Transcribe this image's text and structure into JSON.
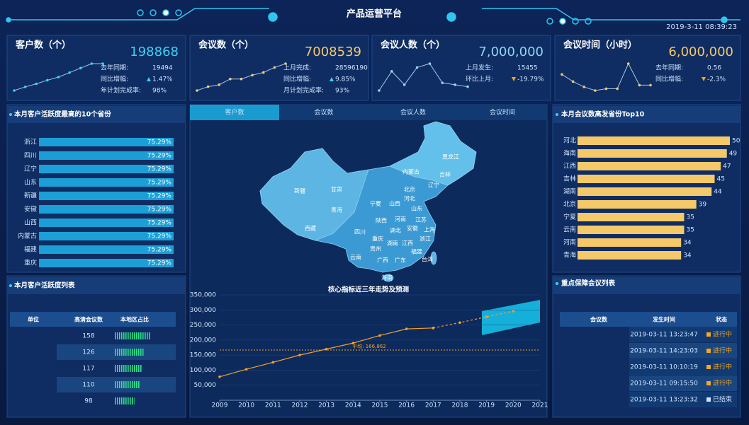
{
  "header": {
    "title": "产品运营平台",
    "datetime": "2019-3-11 08:39:23"
  },
  "kpis": [
    {
      "title": "客户数（个）",
      "value": "198868",
      "color": "#3fd0f5",
      "lines": [
        {
          "label": "去年同期:",
          "value": "19494"
        },
        {
          "label": "同比增幅:",
          "value": "1.47%",
          "trend": "up"
        },
        {
          "label": "年计划完成率:",
          "value": "98%"
        }
      ],
      "sparkline": [
        10,
        18,
        25,
        33,
        40,
        50,
        60,
        70,
        70
      ]
    },
    {
      "title": "会议数（个）",
      "value": "7008539",
      "color": "#f5c96a",
      "lines": [
        {
          "label": "上月完成:",
          "value": "28596190"
        },
        {
          "label": "同比增幅:",
          "value": "9.85%",
          "trend": "up"
        },
        {
          "label": "月计划完成率:",
          "value": "93%"
        }
      ],
      "sparkline": [
        15,
        25,
        30,
        45,
        45,
        55,
        62,
        75,
        85
      ]
    },
    {
      "title": "会议人数（个）",
      "value": "7,000,000",
      "color": "#8fd6f5",
      "lines": [
        {
          "label": "上月发生:",
          "value": "15455"
        },
        {
          "label": "环比上月:",
          "value": "-19.79%",
          "trend": "down"
        }
      ],
      "sparkline": [
        20,
        70,
        35,
        80,
        90,
        40,
        35,
        30
      ]
    },
    {
      "title": "会议时间（小时）",
      "value": "6,000,000",
      "color": "#f5c96a",
      "lines": [
        {
          "label": "去年同期:",
          "value": "0.56"
        },
        {
          "label": "同比增幅:",
          "value": "-2.3%",
          "trend": "down"
        }
      ],
      "sparkline": [
        60,
        40,
        25,
        15,
        20,
        20,
        90,
        30,
        30
      ]
    }
  ],
  "map": {
    "tabs": [
      "客户数",
      "会议数",
      "会议人数",
      "会议时间"
    ],
    "active_tab": 0,
    "labels": [
      "新疆",
      "西藏",
      "青海",
      "甘肃",
      "内蒙古",
      "黑龙江",
      "吉林",
      "辽宁",
      "北京",
      "河北",
      "山西",
      "山东",
      "宁夏",
      "陕西",
      "河南",
      "江苏",
      "安徽",
      "上海",
      "四川",
      "湖北",
      "重庆",
      "浙江",
      "贵州",
      "湖南",
      "江西",
      "福建",
      "云南",
      "广西",
      "广东",
      "台湾",
      "海南"
    ]
  },
  "chart_data": [
    {
      "type": "bar",
      "orientation": "horizontal",
      "title": "本月客户活跃度最高的10个省份",
      "categories": [
        "浙江",
        "四川",
        "辽宁",
        "山东",
        "新疆",
        "安徽",
        "山西",
        "内蒙古",
        "福建",
        "重庆"
      ],
      "values": [
        75.29,
        75.29,
        75.29,
        75.29,
        75.29,
        75.29,
        75.29,
        75.29,
        75.29,
        75.29
      ],
      "value_labels": [
        "75.29%",
        "75.29%",
        "75.29%",
        "75.29%",
        "75.29%",
        "75.29%",
        "75.29%",
        "75.29%",
        "75.29%",
        "75.29%"
      ],
      "color": "#1b9fd6"
    },
    {
      "type": "bar",
      "orientation": "horizontal",
      "title": "本月会议数高发省份Top10",
      "categories": [
        "河北",
        "海南",
        "江西",
        "吉林",
        "湖南",
        "北京",
        "宁夏",
        "云南",
        "河南",
        "青海"
      ],
      "values": [
        50,
        49,
        47,
        45,
        44,
        39,
        35,
        35,
        34,
        34
      ],
      "color": "#f5c96a"
    },
    {
      "type": "line",
      "title": "核心指标近三年走势及预测",
      "x": [
        2009,
        2010,
        2011,
        2012,
        2013,
        2014,
        2015,
        2016,
        2017,
        2018,
        2019,
        2020
      ],
      "series": [
        {
          "color": "#f0a030",
          "style": "solid",
          "values": [
            78000,
            103000,
            126000,
            150000,
            170000,
            190000,
            215000,
            237000,
            240000,
            null,
            null,
            null
          ]
        },
        {
          "color": "#f0a030",
          "style": "dashed",
          "values": [
            null,
            null,
            null,
            null,
            null,
            null,
            null,
            null,
            240000,
            258000,
            277000,
            296000
          ]
        }
      ],
      "average": {
        "value": 166862,
        "label": "平均: 166,862"
      },
      "xlim": [
        2009,
        2021
      ],
      "xticks": [
        2009,
        2010,
        2011,
        2012,
        2013,
        2014,
        2015,
        2016,
        2017,
        2018,
        2019,
        2020,
        2021
      ],
      "ylim": [
        0,
        350000
      ],
      "yticks": [
        {
          "value": 50000,
          "label": "50,000"
        },
        {
          "value": 100000,
          "label": "100,000"
        },
        {
          "value": 150000,
          "label": "150,000"
        },
        {
          "value": 200000,
          "label": "200,000"
        },
        {
          "value": 250000,
          "label": "250,000"
        },
        {
          "value": 300000,
          "label": "300,000"
        },
        {
          "value": 350000,
          "label": "350,000"
        }
      ],
      "grid": true
    }
  ],
  "left_table": {
    "title": "本月客户活跃度列表",
    "columns": [
      "单位",
      "高清会议数",
      "本地区占比"
    ],
    "rows": [
      {
        "count": 158,
        "share": 100
      },
      {
        "count": 126,
        "share": 80
      },
      {
        "count": 117,
        "share": 76
      },
      {
        "count": 110,
        "share": 70
      },
      {
        "count": 98,
        "share": 55
      }
    ]
  },
  "right_table": {
    "title": "重点保障会议列表",
    "columns": [
      "会议数",
      "发生时间",
      "状态"
    ],
    "rows": [
      {
        "time": "2019-03-11 13:23:47",
        "status": "进行中",
        "active": true
      },
      {
        "time": "2019-03-11 14:23:03",
        "status": "进行中",
        "active": true
      },
      {
        "time": "2019-03-11 10:10:19",
        "status": "进行中",
        "active": true
      },
      {
        "time": "2019-03-11 09:15:50",
        "status": "进行中",
        "active": true
      },
      {
        "time": "2019-03-11 13:23:32",
        "status": "已结束",
        "active": false
      }
    ]
  }
}
